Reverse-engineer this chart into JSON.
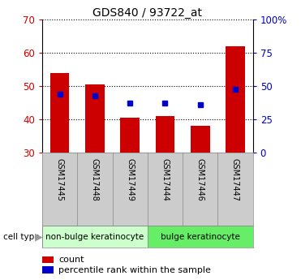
{
  "title": "GDS840 / 93722_at",
  "samples": [
    "GSM17445",
    "GSM17448",
    "GSM17449",
    "GSM17444",
    "GSM17446",
    "GSM17447"
  ],
  "count_values": [
    54.0,
    50.5,
    40.5,
    41.0,
    38.0,
    62.0
  ],
  "percentile_values": [
    47.5,
    47.0,
    45.0,
    45.0,
    44.5,
    49.0
  ],
  "y_min": 30,
  "y_max": 70,
  "y_ticks": [
    30,
    40,
    50,
    60,
    70
  ],
  "y_right_ticks": [
    0,
    25,
    50,
    75,
    100
  ],
  "y_right_labels": [
    "0",
    "25",
    "50",
    "75",
    "100%"
  ],
  "bar_color": "#cc0000",
  "dot_color": "#0000cc",
  "bar_width": 0.55,
  "group1_label": "non-bulge keratinocyte",
  "group2_label": "bulge keratinocyte",
  "group1_color": "#ccffcc",
  "group2_color": "#66ee66",
  "cell_type_label": "cell type",
  "legend_count_label": "count",
  "legend_percentile_label": "percentile rank within the sample",
  "tick_color_left": "#cc0000",
  "tick_color_right": "#0000cc",
  "bg_color": "#ffffff",
  "xlabel_bg": "#cccccc",
  "spine_color": "#000000"
}
